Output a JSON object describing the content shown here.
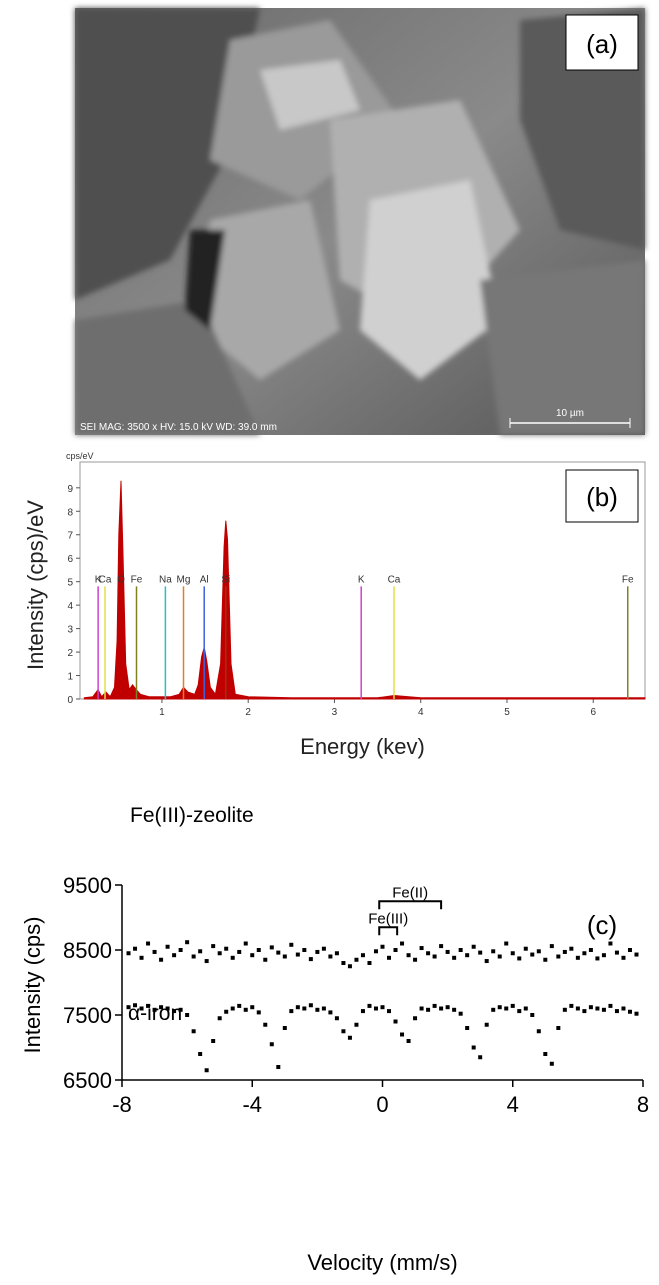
{
  "image_panel": {
    "label": "(a)",
    "caption": "SEI  MAG: 3500 x  HV: 15.0 kV  WD: 39.0 mm",
    "scale_bar": "10 µm"
  },
  "chart_data": [
    {
      "type": "area",
      "label": "(b)",
      "unit_label": "cps/eV",
      "x_label": "Energy (kev)",
      "y_label": "Intensity (cps)/eV",
      "x": [
        0.1,
        0.2,
        0.26,
        0.3,
        0.35,
        0.4,
        0.45,
        0.48,
        0.5,
        0.525,
        0.55,
        0.58,
        0.62,
        0.66,
        0.7,
        0.75,
        0.85,
        1.0,
        1.1,
        1.2,
        1.25,
        1.3,
        1.38,
        1.42,
        1.46,
        1.49,
        1.52,
        1.56,
        1.62,
        1.68,
        1.72,
        1.74,
        1.76,
        1.8,
        1.85,
        2.0,
        2.5,
        3.0,
        3.3,
        3.5,
        3.69,
        4.0,
        5.0,
        6.0,
        6.4,
        6.6
      ],
      "series": [
        {
          "color": "#c00000",
          "values": [
            0.05,
            0.1,
            0.4,
            0.1,
            0.3,
            0.1,
            0.5,
            2.5,
            7.0,
            9.3,
            6.0,
            1.5,
            0.4,
            0.6,
            0.4,
            0.2,
            0.1,
            0.1,
            0.1,
            0.2,
            0.5,
            0.3,
            0.2,
            0.6,
            1.8,
            2.2,
            1.6,
            0.5,
            0.2,
            1.5,
            6.5,
            7.6,
            6.8,
            1.5,
            0.2,
            0.1,
            0.05,
            0.05,
            0.05,
            0.05,
            0.15,
            0.05,
            0.05,
            0.05,
            0.05,
            0.05
          ]
        }
      ],
      "line_height": 4.8,
      "element_lines": [
        {
          "label": "K",
          "x": 0.26,
          "color": "#d040d0"
        },
        {
          "label": "Ca",
          "x": 0.34,
          "color": "#e0e040"
        },
        {
          "label": "O",
          "x": 0.525,
          "color": "#c00000"
        },
        {
          "label": "Fe",
          "x": 0.705,
          "color": "#808020"
        },
        {
          "label": "Na",
          "x": 1.04,
          "color": "#20c0d0"
        },
        {
          "label": "Mg",
          "x": 1.25,
          "color": "#e08020"
        },
        {
          "label": "Al",
          "x": 1.49,
          "color": "#4060e0"
        },
        {
          "label": "Si",
          "x": 1.74,
          "color": "#a03010"
        },
        {
          "label": "K",
          "x": 3.31,
          "color": "#d040d0"
        },
        {
          "label": "Ca",
          "x": 3.69,
          "color": "#e0e040"
        },
        {
          "label": "Fe",
          "x": 6.4,
          "color": "#808020"
        }
      ],
      "xlim": [
        0.05,
        6.6
      ],
      "ylim": [
        0,
        10.1
      ],
      "xticks": [
        1,
        2,
        3,
        4,
        5,
        6
      ],
      "yticks": [
        0,
        1,
        2,
        3,
        4,
        5,
        6,
        7,
        8,
        9
      ]
    },
    {
      "type": "scatter",
      "label": "(c)",
      "x_label": "Velocity (mm/s)",
      "y_label": "Intensity (cps)",
      "x": [
        -7.8,
        -7.6,
        -7.4,
        -7.2,
        -7.0,
        -6.8,
        -6.6,
        -6.4,
        -6.2,
        -6.0,
        -5.8,
        -5.6,
        -5.4,
        -5.2,
        -5.0,
        -4.8,
        -4.6,
        -4.4,
        -4.2,
        -4.0,
        -3.8,
        -3.6,
        -3.4,
        -3.2,
        -3.0,
        -2.8,
        -2.6,
        -2.4,
        -2.2,
        -2.0,
        -1.8,
        -1.6,
        -1.4,
        -1.2,
        -1.0,
        -0.8,
        -0.6,
        -0.4,
        -0.2,
        0,
        0.2,
        0.4,
        0.6,
        0.8,
        1.0,
        1.2,
        1.4,
        1.6,
        1.8,
        2.0,
        2.2,
        2.4,
        2.6,
        2.8,
        3.0,
        3.2,
        3.4,
        3.6,
        3.8,
        4.0,
        4.2,
        4.4,
        4.6,
        4.8,
        5.0,
        5.2,
        5.4,
        5.6,
        5.8,
        6.0,
        6.2,
        6.4,
        6.6,
        6.8,
        7.0,
        7.2,
        7.4,
        7.6,
        7.8
      ],
      "series": [
        {
          "name": "Fe(III)-zeolite",
          "color": "#000000",
          "values": [
            8450,
            8520,
            8380,
            8600,
            8470,
            8350,
            8550,
            8420,
            8500,
            8620,
            8400,
            8480,
            8330,
            8560,
            8450,
            8520,
            8380,
            8470,
            8600,
            8420,
            8500,
            8350,
            8540,
            8460,
            8400,
            8580,
            8430,
            8500,
            8360,
            8470,
            8520,
            8400,
            8450,
            8300,
            8250,
            8350,
            8420,
            8300,
            8480,
            8550,
            8380,
            8500,
            8600,
            8420,
            8350,
            8530,
            8450,
            8400,
            8560,
            8470,
            8380,
            8500,
            8420,
            8550,
            8460,
            8330,
            8480,
            8400,
            8600,
            8450,
            8370,
            8520,
            8430,
            8480,
            8350,
            8560,
            8400,
            8470,
            8520,
            8380,
            8450,
            8500,
            8370,
            8420,
            8600,
            8460,
            8380,
            8500,
            8430
          ]
        },
        {
          "name": "α-iron",
          "color": "#000000",
          "values": [
            7620,
            7650,
            7600,
            7640,
            7580,
            7620,
            7600,
            7560,
            7580,
            7500,
            7250,
            6900,
            6650,
            7100,
            7450,
            7550,
            7600,
            7640,
            7580,
            7620,
            7540,
            7350,
            7050,
            6700,
            7300,
            7560,
            7620,
            7600,
            7650,
            7580,
            7600,
            7540,
            7450,
            7250,
            7150,
            7350,
            7560,
            7640,
            7600,
            7620,
            7560,
            7400,
            7200,
            7100,
            7450,
            7600,
            7580,
            7640,
            7600,
            7620,
            7580,
            7520,
            7300,
            7000,
            6850,
            7350,
            7580,
            7620,
            7600,
            7640,
            7560,
            7600,
            7500,
            7250,
            6900,
            6750,
            7300,
            7580,
            7640,
            7600,
            7560,
            7620,
            7600,
            7580,
            7640,
            7560,
            7600,
            7550,
            7520
          ]
        }
      ],
      "brackets": [
        {
          "text": "Fe(II)",
          "x": [
            -0.1,
            1.8
          ],
          "y": 9250
        },
        {
          "text": "Fe(III)",
          "x": [
            -0.1,
            0.45
          ],
          "y": 8850
        }
      ],
      "xlim": [
        -8,
        8
      ],
      "ylim": [
        6500,
        9500
      ],
      "xticks": [
        -8,
        -4,
        0,
        4,
        8
      ],
      "yticks": [
        6500,
        7500,
        8500,
        9500
      ]
    }
  ]
}
